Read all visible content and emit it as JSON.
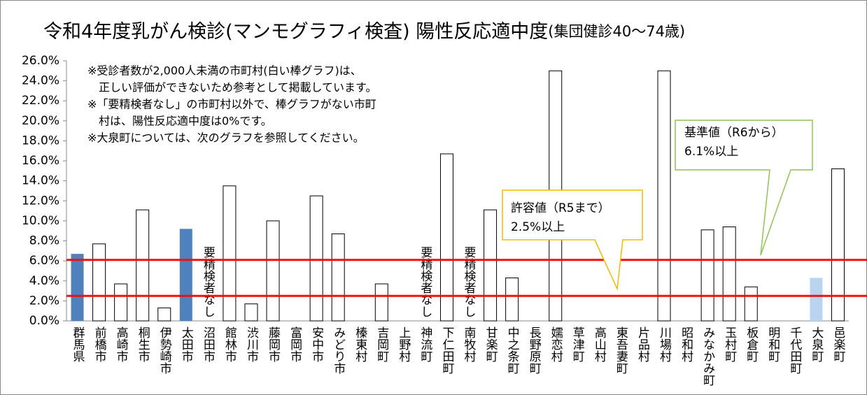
{
  "chart_data": {
    "type": "bar",
    "title": "令和4年度乳がん検診(マンモグラフィ検査) 陽性反応適中度",
    "subtitle": "(集団健診40～74歳)",
    "categories": [
      "群馬県",
      "前橋市",
      "高崎市",
      "桐生市",
      "伊勢崎市",
      "太田市",
      "沼田市",
      "館林市",
      "渋川市",
      "藤岡市",
      "富岡市",
      "安中市",
      "みどり市",
      "榛東村",
      "吉岡町",
      "上野村",
      "神流町",
      "下仁田町",
      "南牧村",
      "甘楽町",
      "中之条町",
      "長野原町",
      "嬬恋村",
      "草津町",
      "高山村",
      "東吾妻町",
      "片品村",
      "川場村",
      "昭和村",
      "みなかみ町",
      "玉村町",
      "板倉町",
      "明和町",
      "千代田町",
      "大泉町",
      "邑楽町"
    ],
    "values": [
      6.7,
      7.7,
      3.7,
      11.1,
      1.3,
      9.2,
      null,
      13.5,
      1.7,
      10.0,
      0,
      12.5,
      8.7,
      0,
      3.7,
      0,
      null,
      16.7,
      null,
      11.1,
      4.3,
      0,
      25.0,
      0,
      0,
      0,
      0,
      25.0,
      0,
      9.1,
      9.4,
      3.4,
      0,
      0,
      4.3,
      15.2
    ],
    "colors": [
      "#4f81bd",
      "#ffffff",
      "#ffffff",
      "#ffffff",
      "#ffffff",
      "#4f81bd",
      "#ffffff",
      "#ffffff",
      "#ffffff",
      "#ffffff",
      "#ffffff",
      "#ffffff",
      "#ffffff",
      "#ffffff",
      "#ffffff",
      "#ffffff",
      "#ffffff",
      "#ffffff",
      "#ffffff",
      "#ffffff",
      "#ffffff",
      "#ffffff",
      "#ffffff",
      "#ffffff",
      "#ffffff",
      "#ffffff",
      "#ffffff",
      "#ffffff",
      "#ffffff",
      "#ffffff",
      "#ffffff",
      "#ffffff",
      "#ffffff",
      "#ffffff",
      "#b8d4ee",
      "#ffffff"
    ],
    "no_data_label": "要精検者なし",
    "ylim": [
      0,
      26
    ],
    "yticks": [
      {
        "value": 0,
        "label": "0.0%"
      },
      {
        "value": 2,
        "label": "2.0%"
      },
      {
        "value": 4,
        "label": "4.0%"
      },
      {
        "value": 6,
        "label": "6.0%"
      },
      {
        "value": 8,
        "label": "8.0%"
      },
      {
        "value": 10,
        "label": "10.0%"
      },
      {
        "value": 12,
        "label": "12.0%"
      },
      {
        "value": 14,
        "label": "14.0%"
      },
      {
        "value": 16,
        "label": "16.0%"
      },
      {
        "value": 18,
        "label": "18.0%"
      },
      {
        "value": 20,
        "label": "20.0%"
      },
      {
        "value": 22,
        "label": "22.0%"
      },
      {
        "value": 24,
        "label": "24.0%"
      },
      {
        "value": 26,
        "label": "26.0%"
      }
    ],
    "reference_lines": [
      {
        "value": 6.1,
        "color": "#ee1111"
      },
      {
        "value": 2.5,
        "color": "#ee1111"
      }
    ],
    "notes": [
      "※受診者数が2,000人未満の市町村(白い棒グラフ)は、",
      "正しい評価ができないため参考として掲載しています。",
      "※「要精検者なし」の市町村以外で、棒グラフがない市町",
      "村は、陽性反応適中度は0%です。",
      "※大泉町については、次のグラフを参照してください。"
    ],
    "callouts": [
      {
        "lines": [
          "許容値（R5まで）",
          "2.5%以上"
        ],
        "color": "#f5b800"
      },
      {
        "lines": [
          "基準値（R6から）",
          "6.1%以上"
        ],
        "color": "#92c353"
      }
    ]
  }
}
